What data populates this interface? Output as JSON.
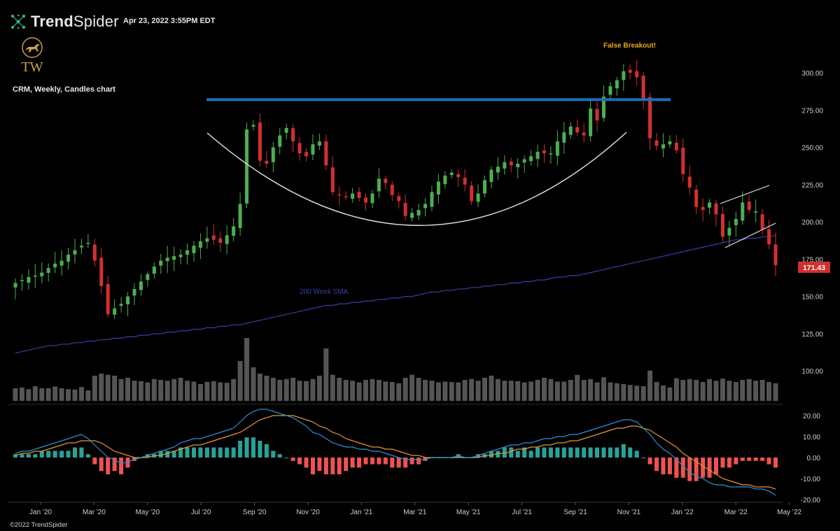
{
  "header": {
    "brand_prefix": "Trend",
    "brand_suffix": "Spider",
    "timestamp": "Apr 23, 2022 3:55PM EDT",
    "logo_text": "TW",
    "chart_title": "CRM, Weekly, Candles chart",
    "copyright": "©2022 TrendSpider"
  },
  "colors": {
    "up": "#4caf50",
    "down": "#d32f2f",
    "sma": "#3a3fa8",
    "resistance": "#1e6fb8",
    "volume": "#555555",
    "macd": "#2e8fd8",
    "signal": "#e8962f",
    "hist_pos": "#2aa198",
    "hist_neg": "#ef5350",
    "annotation": "#e6a817",
    "gold": "#c9a04a"
  },
  "chart_data": {
    "type": "candlestick",
    "symbol": "CRM",
    "interval": "Weekly",
    "price_axis": {
      "ticks": [
        125,
        150,
        175,
        200,
        225,
        250,
        275,
        300
      ],
      "labels": [
        "125.00",
        "150.00",
        "175.00",
        "200.00",
        "225.00",
        "250.00",
        "275.00",
        "300.00"
      ],
      "ylim": [
        110,
        310
      ]
    },
    "volume_axis": {
      "label": "100.00"
    },
    "macd_axis": {
      "ticks": [
        20,
        10,
        0,
        -10,
        -20
      ],
      "labels": [
        "20.00",
        "10.00",
        "0.00",
        "-10.00",
        "-20.00"
      ],
      "ylim": [
        -22,
        24
      ]
    },
    "x_labels": [
      "Jan '20",
      "Mar '20",
      "May '20",
      "Jul '20",
      "Sep '20",
      "Nov '20",
      "Jan '21",
      "Mar '21",
      "May '21",
      "Jul '21",
      "Sep '21",
      "Nov '21",
      "Jan '22",
      "Mar '22",
      "May '22"
    ],
    "last_price": "171.43",
    "annotations": {
      "false_breakout": "False Breakout!",
      "sma_label": "200 Week SMA"
    },
    "resistance_level": 282,
    "closes": [
      159,
      161,
      163,
      164,
      166,
      169,
      172,
      174,
      178,
      181,
      184,
      186,
      174,
      157,
      138,
      142,
      145,
      150,
      155,
      160,
      165,
      170,
      174,
      176,
      177,
      178,
      181,
      184,
      187,
      189,
      188,
      186,
      191,
      197,
      212,
      262,
      265,
      241,
      239,
      250,
      258,
      263,
      254,
      246,
      244,
      252,
      254,
      238,
      220,
      218,
      217,
      219,
      216,
      213,
      219,
      229,
      226,
      218,
      214,
      204,
      206,
      208,
      212,
      220,
      227,
      231,
      233,
      230,
      225,
      214,
      219,
      228,
      235,
      237,
      240,
      238,
      239,
      242,
      244,
      247,
      246,
      246,
      254,
      260,
      264,
      260,
      258,
      276,
      268,
      284,
      291,
      295,
      301,
      300,
      297,
      282,
      256,
      251,
      252,
      254,
      248,
      232,
      223,
      210,
      208,
      213,
      205,
      190,
      196,
      202,
      213,
      208,
      207,
      195,
      185,
      171
    ],
    "sma200": [
      112,
      113,
      114,
      115,
      116,
      117,
      117,
      118,
      118,
      119,
      119,
      120,
      120,
      121,
      121,
      122,
      122,
      123,
      123,
      124,
      124,
      125,
      125,
      126,
      126,
      127,
      127,
      128,
      128,
      129,
      129,
      130,
      130,
      131,
      131,
      132,
      133,
      134,
      135,
      136,
      137,
      138,
      139,
      140,
      141,
      142,
      143,
      144,
      144,
      145,
      145,
      146,
      146,
      147,
      147,
      148,
      148,
      149,
      149,
      150,
      150,
      151,
      152,
      153,
      153,
      154,
      154,
      155,
      155,
      156,
      156,
      157,
      157,
      158,
      158,
      159,
      159,
      160,
      160,
      161,
      161,
      162,
      163,
      163,
      164,
      164,
      165,
      166,
      167,
      168,
      169,
      170,
      171,
      172,
      173,
      174,
      175,
      176,
      177,
      178,
      179,
      180,
      181,
      182,
      183,
      184,
      185,
      186,
      187,
      188,
      188,
      189,
      189,
      190,
      190,
      191
    ],
    "volume": [
      30,
      32,
      28,
      35,
      30,
      30,
      34,
      30,
      28,
      27,
      33,
      25,
      60,
      65,
      62,
      60,
      52,
      55,
      48,
      47,
      44,
      52,
      50,
      48,
      52,
      55,
      48,
      46,
      40,
      45,
      47,
      44,
      43,
      52,
      95,
      150,
      80,
      65,
      60,
      55,
      50,
      52,
      55,
      48,
      47,
      52,
      60,
      125,
      62,
      55,
      50,
      48,
      44,
      50,
      52,
      50,
      46,
      45,
      42,
      55,
      62,
      55,
      50,
      48,
      44,
      46,
      45,
      44,
      50,
      52,
      48,
      55,
      60,
      52,
      48,
      48,
      47,
      44,
      46,
      50,
      55,
      52,
      46,
      46,
      50,
      62,
      50,
      52,
      44,
      56,
      44,
      42,
      40,
      38,
      36,
      35,
      72,
      45,
      37,
      32,
      54,
      50,
      52,
      50,
      45,
      52,
      48,
      53,
      48,
      45,
      50,
      52,
      48,
      50,
      45,
      42
    ],
    "macd": [
      2,
      3,
      3,
      4,
      5,
      6,
      7,
      8,
      9,
      10,
      11,
      9,
      6,
      3,
      0,
      -1,
      -3,
      -2,
      -1,
      0,
      1,
      2,
      3,
      4,
      5,
      7,
      8,
      9,
      9,
      10,
      11,
      12,
      13,
      14,
      17,
      20,
      22,
      23,
      23,
      22,
      21,
      20,
      19,
      17,
      15,
      12,
      11,
      9,
      7,
      6,
      5,
      5,
      4,
      4,
      3,
      3,
      2,
      1,
      0,
      -1,
      -1,
      -1,
      -1,
      0,
      0,
      0,
      0,
      1,
      0,
      0,
      1,
      2,
      3,
      4,
      5,
      6,
      6,
      7,
      7,
      8,
      9,
      9,
      10,
      10,
      11,
      11,
      12,
      13,
      14,
      15,
      16,
      17,
      18,
      18,
      17,
      14,
      11,
      7,
      4,
      2,
      -1,
      -4,
      -7,
      -9,
      -10,
      -12,
      -13,
      -13,
      -14,
      -14,
      -14,
      -14,
      -15,
      -15,
      -16,
      -18
    ],
    "signal": [
      1,
      2,
      2,
      3,
      3,
      4,
      5,
      6,
      7,
      7,
      8,
      8,
      8,
      7,
      5,
      3,
      2,
      1,
      0,
      0,
      0,
      1,
      1,
      2,
      3,
      4,
      5,
      6,
      6,
      7,
      8,
      9,
      10,
      11,
      12,
      14,
      16,
      18,
      19,
      20,
      20,
      20,
      20,
      19,
      18,
      17,
      15,
      14,
      12,
      11,
      9,
      8,
      7,
      6,
      5,
      5,
      4,
      4,
      3,
      2,
      1,
      1,
      0,
      0,
      0,
      0,
      0,
      0,
      0,
      0,
      0,
      1,
      1,
      2,
      2,
      3,
      4,
      4,
      5,
      5,
      6,
      6,
      7,
      7,
      8,
      8,
      9,
      10,
      11,
      12,
      13,
      14,
      14,
      15,
      15,
      14,
      13,
      11,
      9,
      7,
      5,
      2,
      0,
      -2,
      -4,
      -6,
      -8,
      -10,
      -11,
      -12,
      -13,
      -13,
      -14,
      -14,
      -14,
      -15
    ]
  }
}
